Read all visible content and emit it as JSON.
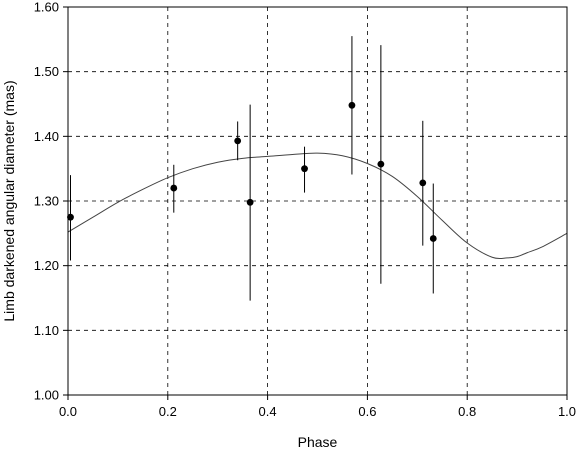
{
  "chart_data": {
    "type": "scatter",
    "xlabel": "Phase",
    "ylabel": "Limb darkened angular diameter (mas)",
    "xlim": [
      0.0,
      1.0
    ],
    "ylim": [
      1.0,
      1.6
    ],
    "x_ticks": [
      "0.0",
      "0.2",
      "0.4",
      "0.6",
      "0.8",
      "1.0"
    ],
    "y_ticks": [
      "1.00",
      "1.10",
      "1.20",
      "1.30",
      "1.40",
      "1.50",
      "1.60"
    ],
    "grid": true,
    "series": [
      {
        "type": "errorbar",
        "color": "#000000",
        "points": [
          {
            "x": 0.005,
            "y": 1.275,
            "lo": 1.208,
            "hi": 1.34
          },
          {
            "x": 0.212,
            "y": 1.32,
            "lo": 1.282,
            "hi": 1.356
          },
          {
            "x": 0.34,
            "y": 1.393,
            "lo": 1.363,
            "hi": 1.423
          },
          {
            "x": 0.365,
            "y": 1.298,
            "lo": 1.146,
            "hi": 1.449
          },
          {
            "x": 0.474,
            "y": 1.35,
            "lo": 1.313,
            "hi": 1.384
          },
          {
            "x": 0.569,
            "y": 1.448,
            "lo": 1.341,
            "hi": 1.555
          },
          {
            "x": 0.627,
            "y": 1.357,
            "lo": 1.172,
            "hi": 1.541
          },
          {
            "x": 0.711,
            "y": 1.328,
            "lo": 1.231,
            "hi": 1.424
          },
          {
            "x": 0.732,
            "y": 1.242,
            "lo": 1.157,
            "hi": 1.327
          }
        ]
      },
      {
        "type": "line",
        "color": "#444444",
        "x": [
          0.0,
          0.05,
          0.1,
          0.15,
          0.2,
          0.25,
          0.3,
          0.35,
          0.4,
          0.45,
          0.5,
          0.55,
          0.6,
          0.65,
          0.7,
          0.75,
          0.8,
          0.85,
          0.88,
          0.9,
          0.92,
          0.95,
          1.0
        ],
        "y": [
          1.252,
          1.275,
          1.298,
          1.318,
          1.336,
          1.35,
          1.36,
          1.366,
          1.369,
          1.372,
          1.374,
          1.37,
          1.358,
          1.338,
          1.307,
          1.27,
          1.235,
          1.213,
          1.212,
          1.214,
          1.22,
          1.229,
          1.25
        ]
      }
    ]
  }
}
